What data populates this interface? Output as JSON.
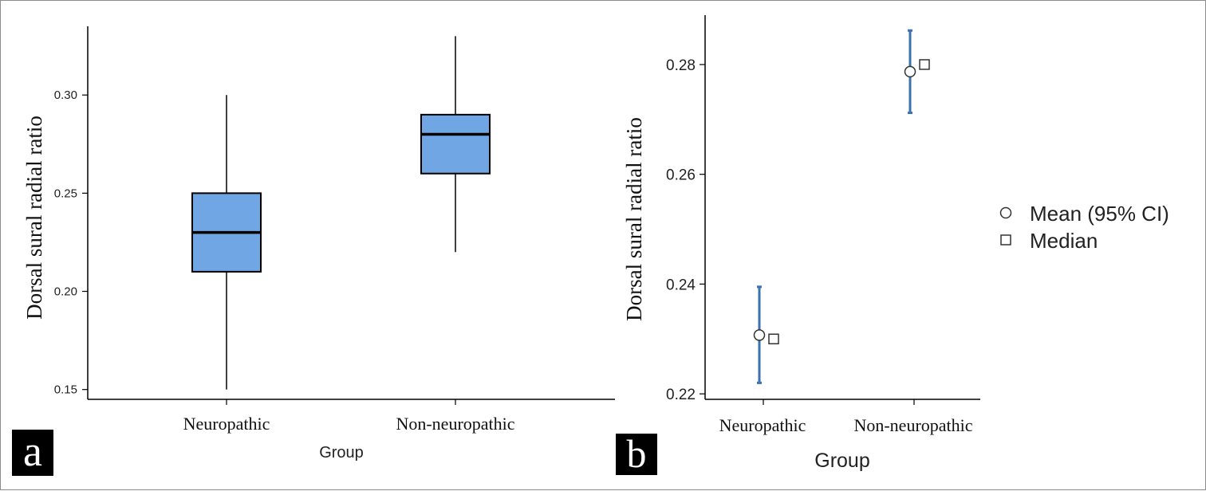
{
  "colors": {
    "box_fill": "#6fa6e3",
    "box_stroke": "#000000",
    "ci_line": "#3d72b0",
    "axis": "#000000",
    "panel_tag_bg": "#000000"
  },
  "panels": {
    "a": {
      "tag": "a"
    },
    "b": {
      "tag": "b"
    }
  },
  "chart_data": [
    {
      "type": "box",
      "panel": "a",
      "title": "",
      "xlabel": "Group",
      "ylabel": "Dorsal sural radial ratio",
      "ylim": [
        0.145,
        0.335
      ],
      "yticks": [
        0.15,
        0.2,
        0.25,
        0.3
      ],
      "ytick_labels": [
        "0.15",
        "0.20",
        "0.25",
        "0.30"
      ],
      "categories": [
        "Neuropathic",
        "Non-neuropathic"
      ],
      "boxes": [
        {
          "category": "Neuropathic",
          "min": 0.15,
          "q1": 0.21,
          "median": 0.23,
          "q3": 0.25,
          "max": 0.3
        },
        {
          "category": "Non-neuropathic",
          "min": 0.22,
          "q1": 0.26,
          "median": 0.28,
          "q3": 0.29,
          "max": 0.33
        }
      ]
    },
    {
      "type": "scatter",
      "panel": "b",
      "title": "",
      "xlabel": "Group",
      "ylabel": "Dorsal sural radial ratio",
      "ylim": [
        0.219,
        0.289
      ],
      "yticks": [
        0.22,
        0.24,
        0.26,
        0.28
      ],
      "ytick_labels": [
        "0.22",
        "0.24",
        "0.26",
        "0.28"
      ],
      "categories": [
        "Neuropathic",
        "Non-neuropathic"
      ],
      "legend": {
        "position": "right",
        "entries": [
          "Mean (95% CI)",
          "Median"
        ]
      },
      "series": [
        {
          "name": "Mean (95% CI)",
          "marker": "circle",
          "points": [
            {
              "category": "Neuropathic",
              "mean": 0.2307,
              "ci_low": 0.222,
              "ci_high": 0.2395
            },
            {
              "category": "Non-neuropathic",
              "mean": 0.2787,
              "ci_low": 0.2712,
              "ci_high": 0.2862
            }
          ]
        },
        {
          "name": "Median",
          "marker": "square",
          "points": [
            {
              "category": "Neuropathic",
              "value": 0.23
            },
            {
              "category": "Non-neuropathic",
              "value": 0.28
            }
          ]
        }
      ]
    }
  ]
}
